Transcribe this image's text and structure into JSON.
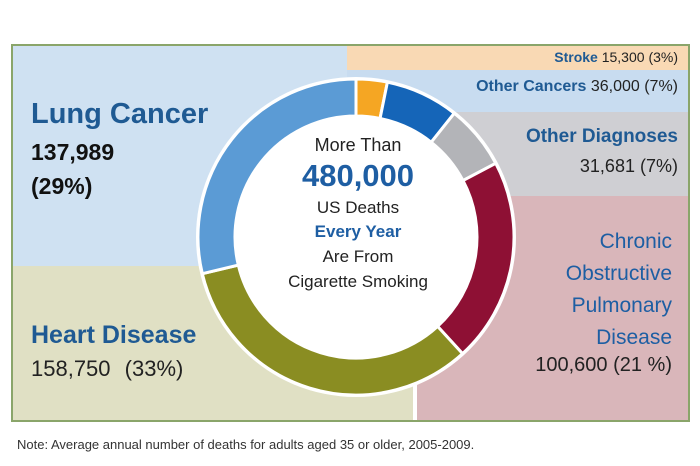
{
  "chart_data": {
    "type": "pie",
    "center": {
      "line1": "More Than",
      "total": "480,000",
      "line3": "US Deaths",
      "line4": "Every Year",
      "line5": "Are From",
      "line6": "Cigarette Smoking"
    },
    "slices": [
      {
        "key": "stroke",
        "label": "Stroke",
        "value": 15300,
        "value_text": "15,300",
        "pct_text": "(3%)",
        "color": "#f5a623"
      },
      {
        "key": "other_cancers",
        "label": "Other Cancers",
        "value": 36000,
        "value_text": "36,000",
        "pct_text": "(7%)",
        "color": "#1565b8"
      },
      {
        "key": "other_diagnoses",
        "label": "Other Diagnoses",
        "value": 31681,
        "value_text": "31,681",
        "pct_text": "(7%)",
        "color": "#b3b4b8"
      },
      {
        "key": "copd",
        "label_lines": [
          "Chronic",
          "Obstructive",
          "Pulmonary",
          "Disease"
        ],
        "value": 100600,
        "value_text": "100,600",
        "pct_text": "(21 %)",
        "color": "#8e1034"
      },
      {
        "key": "heart",
        "label": "Heart Disease",
        "value": 158750,
        "value_text": "158,750",
        "pct_text": "(33%)",
        "color": "#8a8d22"
      },
      {
        "key": "lung",
        "label": "Lung Cancer",
        "value": 137989,
        "value_text": "137,989",
        "pct_text": "(29%)",
        "color": "#5b9bd5"
      }
    ],
    "note": "Note: Average annual number of deaths for adults aged 35 or older, 2005-2009."
  }
}
